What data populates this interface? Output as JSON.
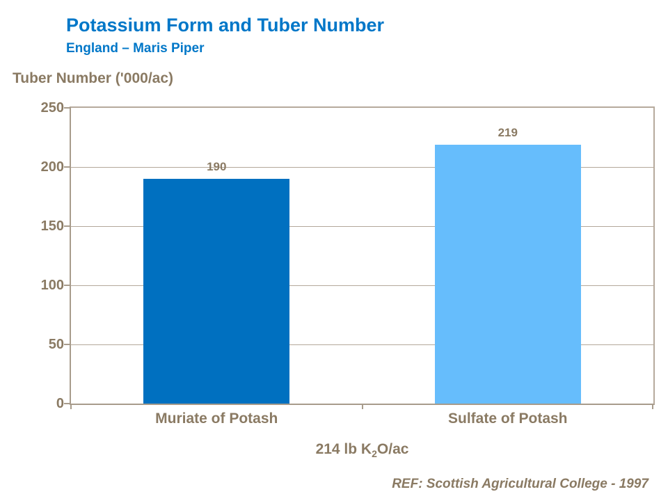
{
  "header": {
    "title": "Potassium Form and Tuber Number",
    "subtitle": "England – Maris Piper"
  },
  "chart_data": {
    "type": "bar",
    "title": "Potassium Form and Tuber Number",
    "subtitle": "England – Maris Piper",
    "ylabel": "Tuber Number ('000/ac)",
    "xlabel": "214 lb K2O/ac",
    "xlabel_parts": {
      "prefix": "214 lb K",
      "sub": "2",
      "suffix": "O/ac"
    },
    "categories": [
      "Muriate of Potash",
      "Sulfate of Potash"
    ],
    "values": [
      190,
      219
    ],
    "bar_colors": [
      "#0070c0",
      "#66bdfc"
    ],
    "ylim": [
      0,
      250
    ],
    "yticks": [
      250,
      200,
      150,
      100,
      50,
      0
    ],
    "grid": true,
    "legend": "none"
  },
  "footer": {
    "ref": "REF: Scottish Agricultural College - 1997"
  },
  "colors": {
    "accent_blue": "#0077c8",
    "bar_dark": "#0070c0",
    "bar_light": "#66bdfc",
    "text_brown": "#8a7a63",
    "axis": "#a79b8b",
    "gridline": "#b3a79a"
  }
}
